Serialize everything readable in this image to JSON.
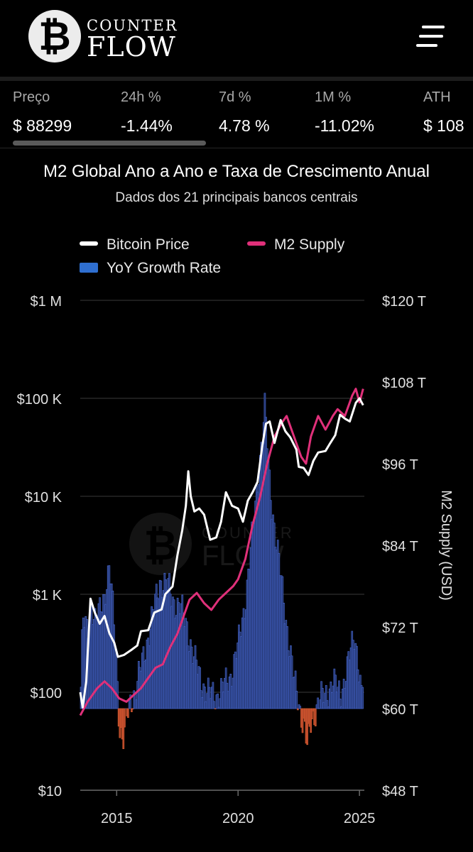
{
  "header": {
    "brand_top": "COUNTER",
    "brand_bottom": "FLOW",
    "logo_glyph": "₿",
    "menu_icon": "hamburger-menu-icon"
  },
  "stats": [
    {
      "label": "Preço",
      "value": "$ 88299"
    },
    {
      "label": "24h %",
      "value": "-1.44%"
    },
    {
      "label": "7d %",
      "value": "4.78 %"
    },
    {
      "label": "1M %",
      "value": "-11.02%"
    },
    {
      "label": "ATH",
      "value": "$ 108"
    }
  ],
  "chart": {
    "title": "M2 Global Ano a Ano e Taxa de Crescimento Anual",
    "subtitle": "Dados dos 21 principais bancos centrais"
  },
  "colors": {
    "bitcoin": "#ffffff",
    "m2": "#e0307a",
    "bar_positive": "#22336b",
    "bar_positive_edge": "#4a6cd8",
    "bar_negative": "#b0442a",
    "bar_negative_edge": "#e0602f",
    "grid": "#3a3a3a"
  },
  "chart_data": {
    "type": "line",
    "legend": [
      "Bitcoin Price",
      "M2 Supply",
      "YoY Growth Rate"
    ],
    "y_left": {
      "scale": "log",
      "ticks": [
        10,
        100,
        1000,
        10000,
        100000,
        1000000
      ],
      "tick_labels": [
        "$10",
        "$100",
        "$1 K",
        "$10 K",
        "$100 K",
        "$1 M"
      ],
      "range": [
        10,
        1000000
      ]
    },
    "y_right": {
      "label": "M2 Supply (USD)",
      "ticks": [
        48,
        60,
        72,
        84,
        96,
        108,
        120
      ],
      "tick_labels": [
        "$48 T",
        "$60 T",
        "$72 T",
        "$84 T",
        "$96 T",
        "$108 T",
        "$120 T"
      ],
      "range": [
        48,
        120
      ]
    },
    "x": {
      "range": [
        2013.5,
        2025.2
      ],
      "ticks": [
        2015,
        2020,
        2025
      ],
      "tick_labels": [
        "2015",
        "2020",
        "2025"
      ]
    },
    "series": [
      {
        "name": "Bitcoin Price",
        "axis": "left",
        "points": [
          [
            2013.5,
            100
          ],
          [
            2013.6,
            70
          ],
          [
            2013.75,
            130
          ],
          [
            2013.92,
            900
          ],
          [
            2014.1,
            650
          ],
          [
            2014.3,
            500
          ],
          [
            2014.5,
            600
          ],
          [
            2014.7,
            400
          ],
          [
            2014.9,
            320
          ],
          [
            2015.05,
            230
          ],
          [
            2015.3,
            240
          ],
          [
            2015.6,
            270
          ],
          [
            2015.85,
            300
          ],
          [
            2016.0,
            420
          ],
          [
            2016.3,
            430
          ],
          [
            2016.55,
            650
          ],
          [
            2016.85,
            700
          ],
          [
            2017.0,
            1000
          ],
          [
            2017.3,
            1200
          ],
          [
            2017.5,
            2500
          ],
          [
            2017.7,
            4500
          ],
          [
            2017.85,
            8000
          ],
          [
            2017.95,
            18000
          ],
          [
            2018.05,
            10000
          ],
          [
            2018.2,
            7000
          ],
          [
            2018.4,
            7500
          ],
          [
            2018.6,
            6500
          ],
          [
            2018.85,
            3600
          ],
          [
            2019.1,
            3800
          ],
          [
            2019.3,
            5500
          ],
          [
            2019.5,
            11000
          ],
          [
            2019.75,
            8000
          ],
          [
            2020.0,
            7500
          ],
          [
            2020.2,
            5500
          ],
          [
            2020.4,
            9000
          ],
          [
            2020.6,
            11000
          ],
          [
            2020.8,
            14000
          ],
          [
            2021.0,
            33000
          ],
          [
            2021.15,
            55000
          ],
          [
            2021.3,
            58000
          ],
          [
            2021.5,
            35000
          ],
          [
            2021.75,
            60000
          ],
          [
            2021.95,
            46000
          ],
          [
            2022.15,
            40000
          ],
          [
            2022.4,
            30000
          ],
          [
            2022.5,
            20000
          ],
          [
            2022.7,
            19500
          ],
          [
            2022.9,
            16500
          ],
          [
            2023.1,
            23000
          ],
          [
            2023.3,
            28000
          ],
          [
            2023.6,
            29000
          ],
          [
            2023.8,
            35000
          ],
          [
            2024.0,
            42000
          ],
          [
            2024.2,
            68000
          ],
          [
            2024.4,
            62000
          ],
          [
            2024.6,
            58000
          ],
          [
            2024.85,
            90000
          ],
          [
            2025.0,
            100000
          ],
          [
            2025.15,
            85000
          ]
        ]
      },
      {
        "name": "M2 Supply",
        "axis": "right",
        "points": [
          [
            2013.5,
            59
          ],
          [
            2013.8,
            61
          ],
          [
            2014.2,
            63
          ],
          [
            2014.5,
            64
          ],
          [
            2014.8,
            63
          ],
          [
            2015.1,
            61.5
          ],
          [
            2015.4,
            61
          ],
          [
            2015.7,
            62
          ],
          [
            2016.0,
            63
          ],
          [
            2016.3,
            64.5
          ],
          [
            2016.6,
            66
          ],
          [
            2016.9,
            66.5
          ],
          [
            2017.2,
            69
          ],
          [
            2017.5,
            71
          ],
          [
            2017.8,
            74
          ],
          [
            2018.0,
            76
          ],
          [
            2018.3,
            77
          ],
          [
            2018.6,
            75.5
          ],
          [
            2018.9,
            74.5
          ],
          [
            2019.2,
            76
          ],
          [
            2019.5,
            77
          ],
          [
            2019.8,
            78
          ],
          [
            2020.0,
            79
          ],
          [
            2020.3,
            82
          ],
          [
            2020.6,
            87
          ],
          [
            2020.9,
            91
          ],
          [
            2021.2,
            96
          ],
          [
            2021.5,
            100
          ],
          [
            2021.8,
            102
          ],
          [
            2022.0,
            103
          ],
          [
            2022.3,
            100
          ],
          [
            2022.6,
            97
          ],
          [
            2022.8,
            96
          ],
          [
            2023.0,
            100
          ],
          [
            2023.3,
            103
          ],
          [
            2023.6,
            101
          ],
          [
            2023.9,
            103
          ],
          [
            2024.1,
            104
          ],
          [
            2024.4,
            103
          ],
          [
            2024.7,
            106
          ],
          [
            2024.85,
            107
          ],
          [
            2025.0,
            105
          ],
          [
            2025.15,
            107
          ]
        ]
      },
      {
        "name": "YoY Growth Rate",
        "axis": "bars",
        "baseline_at_right": 60,
        "points": [
          [
            2013.5,
            60
          ],
          [
            2013.6,
            73
          ],
          [
            2013.8,
            71
          ],
          [
            2013.95,
            76
          ],
          [
            2014.1,
            73
          ],
          [
            2014.3,
            74
          ],
          [
            2014.5,
            77
          ],
          [
            2014.7,
            81
          ],
          [
            2014.85,
            74
          ],
          [
            2015.0,
            66
          ],
          [
            2015.1,
            58
          ],
          [
            2015.25,
            55
          ],
          [
            2015.4,
            58
          ],
          [
            2015.55,
            61
          ],
          [
            2015.8,
            63
          ],
          [
            2016.0,
            66
          ],
          [
            2016.25,
            70
          ],
          [
            2016.5,
            74
          ],
          [
            2016.8,
            79
          ],
          [
            2017.1,
            78
          ],
          [
            2017.3,
            76
          ],
          [
            2017.6,
            75
          ],
          [
            2017.9,
            72
          ],
          [
            2018.2,
            67
          ],
          [
            2018.5,
            64
          ],
          [
            2018.8,
            62
          ],
          [
            2019.1,
            62
          ],
          [
            2019.4,
            63
          ],
          [
            2019.7,
            65
          ],
          [
            2020.0,
            69
          ],
          [
            2020.3,
            76
          ],
          [
            2020.6,
            86
          ],
          [
            2020.9,
            97
          ],
          [
            2021.1,
            104
          ],
          [
            2021.3,
            93
          ],
          [
            2021.55,
            85
          ],
          [
            2021.8,
            78
          ],
          [
            2022.05,
            71
          ],
          [
            2022.3,
            64
          ],
          [
            2022.55,
            60
          ],
          [
            2022.75,
            57
          ],
          [
            2022.85,
            54
          ],
          [
            2023.0,
            58
          ],
          [
            2023.3,
            61
          ],
          [
            2023.6,
            62
          ],
          [
            2023.9,
            64
          ],
          [
            2024.2,
            62
          ],
          [
            2024.5,
            66
          ],
          [
            2024.8,
            71
          ],
          [
            2024.95,
            67
          ],
          [
            2025.1,
            61
          ],
          [
            2025.15,
            66
          ]
        ]
      }
    ]
  }
}
